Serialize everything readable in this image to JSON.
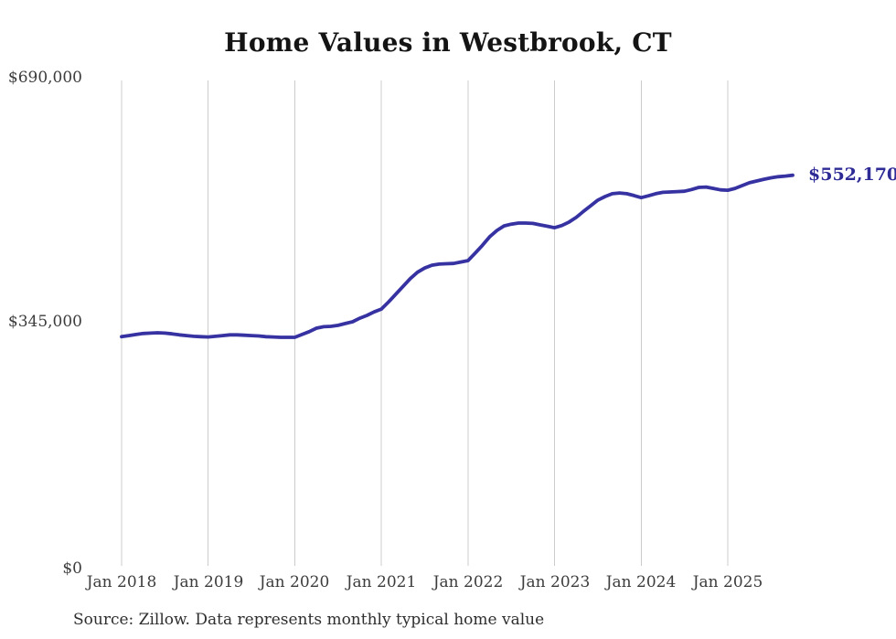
{
  "chart_data": {
    "type": "line",
    "title": "Home Values in Westbrook, CT",
    "source": "Source: Zillow. Data represents monthly typical home value",
    "series_name": "Monthly typical home value",
    "end_label": "$552,170",
    "latest_value": 552170,
    "x_frequency": "monthly",
    "x_start": "Jan 2018",
    "x_end": "Oct 2025",
    "ylim": [
      0,
      690000
    ],
    "grid": "vertical-only",
    "legend": "none",
    "line_color": "#3632a2",
    "grid_color": "#cccccc",
    "label_color": "#2e2b96",
    "yticks": [
      {
        "label": "$690,000",
        "value": 690000
      },
      {
        "label": "$345,000",
        "value": 345000
      },
      {
        "label": "$0",
        "value": 0
      }
    ],
    "xticks": [
      "Jan 2018",
      "Jan 2019",
      "Jan 2020",
      "Jan 2021",
      "Jan 2022",
      "Jan 2023",
      "Jan 2024",
      "Jan 2025"
    ],
    "values": [
      324000,
      325500,
      327000,
      328500,
      329000,
      329500,
      329000,
      328000,
      326500,
      325500,
      324500,
      324000,
      323500,
      324500,
      325500,
      326500,
      326500,
      326000,
      325500,
      325000,
      324000,
      323500,
      323000,
      323000,
      323000,
      327000,
      331000,
      336000,
      338000,
      338500,
      340000,
      342500,
      345000,
      350000,
      354000,
      359000,
      363000,
      373000,
      384000,
      395000,
      406000,
      415000,
      421000,
      425000,
      426500,
      427000,
      427500,
      429500,
      431500,
      442000,
      453000,
      465000,
      474000,
      480500,
      483000,
      484500,
      484500,
      484000,
      482000,
      480000,
      478000,
      481000,
      486000,
      492500,
      501000,
      509000,
      517000,
      522000,
      526000,
      527000,
      526000,
      523500,
      520500,
      523000,
      526000,
      528000,
      528500,
      529000,
      529500,
      532000,
      535000,
      535500,
      533500,
      531500,
      531000,
      533500,
      537500,
      541500,
      544000,
      546500,
      548500,
      550000,
      551000,
      552170
    ]
  }
}
